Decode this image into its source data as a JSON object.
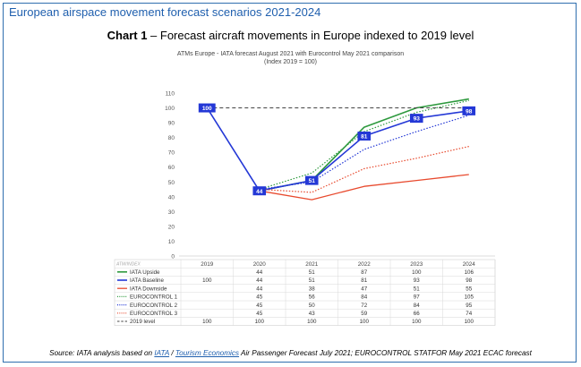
{
  "header": {
    "title": "European airspace movement forecast scenarios 2021-2024"
  },
  "chart_heading": {
    "bold": "Chart 1",
    "rest": " – Forecast aircraft movements in Europe indexed to 2019 level"
  },
  "chart_data": {
    "type": "line",
    "title": "ATMs Europe - IATA forecast August 2021 with Eurocontrol May 2021 comparison",
    "subtitle": "(Index 2019 = 100)",
    "table_corner_label": "ATM/INDEX",
    "categories": [
      "2019",
      "2020",
      "2021",
      "2022",
      "2023",
      "2024"
    ],
    "ylim": [
      0,
      110
    ],
    "yticks": [
      0,
      10,
      20,
      30,
      40,
      50,
      60,
      70,
      80,
      90,
      100,
      110
    ],
    "series": [
      {
        "name": "IATA Upside",
        "values": [
          null,
          44,
          51,
          87,
          100,
          106
        ],
        "cells": [
          "",
          "44",
          "51",
          "87",
          "100",
          "106"
        ],
        "color": "#2e9a3e",
        "style": "solid",
        "width": 1.6
      },
      {
        "name": "IATA Baseline",
        "values": [
          100,
          44,
          51,
          81,
          93,
          98
        ],
        "cells": [
          "100",
          "44",
          "51",
          "81",
          "93",
          "98"
        ],
        "color": "#2438d6",
        "style": "solid",
        "width": 1.6
      },
      {
        "name": "IATA Downside",
        "values": [
          null,
          44,
          38,
          47,
          51,
          55
        ],
        "cells": [
          "",
          "44",
          "38",
          "47",
          "51",
          "55"
        ],
        "color": "#e84a2e",
        "style": "solid",
        "width": 1.3
      },
      {
        "name": "EUROCONTROL 1",
        "values": [
          null,
          45,
          56,
          84,
          97,
          105
        ],
        "cells": [
          "",
          "45",
          "56",
          "84",
          "97",
          "105"
        ],
        "color": "#2e9a3e",
        "style": "dotted",
        "width": 1.2
      },
      {
        "name": "EUROCONTROL 2",
        "values": [
          null,
          45,
          50,
          72,
          84,
          95
        ],
        "cells": [
          "",
          "45",
          "50",
          "72",
          "84",
          "95"
        ],
        "color": "#2438d6",
        "style": "dotted",
        "width": 1.2
      },
      {
        "name": "EUROCONTROL 3",
        "values": [
          null,
          45,
          43,
          59,
          66,
          74
        ],
        "cells": [
          "",
          "45",
          "43",
          "59",
          "66",
          "74"
        ],
        "color": "#e84a2e",
        "style": "dotted",
        "width": 1.2
      },
      {
        "name": "2019 level",
        "values": [
          100,
          100,
          100,
          100,
          100,
          100
        ],
        "cells": [
          "100",
          "100",
          "100",
          "100",
          "100",
          "100"
        ],
        "color": "#444444",
        "style": "dashed",
        "width": 1.1
      }
    ],
    "data_labels": {
      "series": "IATA Baseline",
      "points": [
        {
          "category": "2019",
          "text": "100"
        },
        {
          "category": "2020",
          "text": "44"
        },
        {
          "category": "2021",
          "text": "51"
        },
        {
          "category": "2022",
          "text": "81"
        },
        {
          "category": "2023",
          "text": "93"
        },
        {
          "category": "2024",
          "text": "98"
        }
      ],
      "bg_color": "#2438d6"
    }
  },
  "source": {
    "prefix": "Source: IATA analysis based on ",
    "link1": "IATA",
    "sep": " / ",
    "link2": "Tourism Economics",
    "suffix": " Air Passenger Forecast July 2021; EUROCONTROL STATFOR May 2021 ECAC forecast"
  }
}
